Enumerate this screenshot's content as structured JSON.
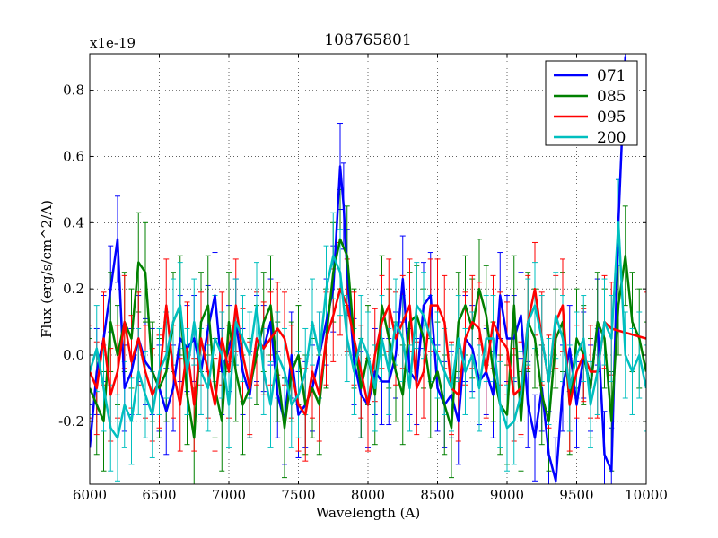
{
  "chart_data": {
    "type": "line",
    "title": "108765801",
    "xlabel": "Wavelength (A)",
    "ylabel": "Flux (erg/s/cm^2/A)",
    "y_multiplier_label": "x1e-19",
    "xlim": [
      6000,
      10000
    ],
    "ylim": [
      -0.39,
      0.91
    ],
    "x_ticks": [
      6000,
      6500,
      7000,
      7500,
      8000,
      8500,
      9000,
      9500,
      10000
    ],
    "x_tick_labels": [
      "6000",
      "6500",
      "7000",
      "7500",
      "8000",
      "8500",
      "9000",
      "9500",
      "10000"
    ],
    "y_ticks": [
      -0.2,
      0.0,
      0.2,
      0.4,
      0.6,
      0.8
    ],
    "y_tick_labels": [
      "-0.2",
      "0.0",
      "0.2",
      "0.4",
      "0.6",
      "0.8"
    ],
    "grid": true,
    "legend_position": "top-right",
    "error_bars": true,
    "series": [
      {
        "name": "071",
        "color": "#0000ff",
        "err": 0.13,
        "x": [
          6000,
          6050,
          6100,
          6150,
          6200,
          6250,
          6300,
          6350,
          6400,
          6450,
          6500,
          6550,
          6600,
          6650,
          6700,
          6750,
          6800,
          6850,
          6900,
          6950,
          7000,
          7050,
          7100,
          7150,
          7200,
          7250,
          7300,
          7350,
          7400,
          7450,
          7500,
          7550,
          7600,
          7650,
          7700,
          7750,
          7800,
          7825,
          7850,
          7900,
          7950,
          8000,
          8050,
          8100,
          8150,
          8200,
          8250,
          8300,
          8350,
          8400,
          8450,
          8500,
          8550,
          8600,
          8650,
          8700,
          8750,
          8800,
          8850,
          8900,
          8950,
          9000,
          9050,
          9100,
          9150,
          9200,
          9250,
          9300,
          9350,
          9400,
          9450,
          9500,
          9550,
          9600,
          9650,
          9700,
          9750,
          9800,
          9850
        ],
        "y": [
          -0.28,
          -0.05,
          0.05,
          0.2,
          0.35,
          -0.1,
          -0.05,
          0.05,
          -0.02,
          -0.05,
          -0.1,
          -0.17,
          -0.1,
          0.05,
          0.02,
          0.05,
          -0.05,
          0.08,
          0.18,
          -0.05,
          0.02,
          0.1,
          -0.05,
          -0.12,
          0.05,
          0.02,
          0.1,
          -0.12,
          -0.2,
          0.0,
          -0.18,
          -0.15,
          -0.1,
          0.0,
          0.1,
          0.2,
          0.57,
          0.45,
          0.25,
          -0.02,
          -0.12,
          -0.15,
          -0.05,
          -0.08,
          -0.08,
          0.0,
          0.23,
          -0.05,
          -0.08,
          0.15,
          0.18,
          -0.1,
          -0.15,
          -0.12,
          -0.2,
          0.05,
          0.02,
          -0.08,
          -0.05,
          -0.12,
          0.18,
          0.05,
          0.05,
          0.12,
          -0.15,
          -0.25,
          -0.1,
          -0.3,
          -0.38,
          -0.1,
          0.02,
          -0.15,
          0.0,
          -0.1,
          0.1,
          -0.3,
          -0.35,
          0.4,
          0.9
        ]
      },
      {
        "name": "085",
        "color": "#008000",
        "err": 0.15,
        "x": [
          6000,
          6050,
          6100,
          6150,
          6200,
          6250,
          6300,
          6350,
          6400,
          6450,
          6500,
          6550,
          6600,
          6650,
          6700,
          6750,
          6800,
          6850,
          6900,
          6950,
          7000,
          7050,
          7100,
          7150,
          7200,
          7250,
          7300,
          7350,
          7400,
          7450,
          7500,
          7550,
          7600,
          7650,
          7700,
          7750,
          7800,
          7850,
          7900,
          7950,
          8000,
          8050,
          8100,
          8150,
          8200,
          8250,
          8300,
          8350,
          8400,
          8450,
          8500,
          8550,
          8600,
          8650,
          8700,
          8750,
          8800,
          8850,
          8900,
          8950,
          9000,
          9050,
          9100,
          9150,
          9200,
          9250,
          9300,
          9350,
          9400,
          9450,
          9500,
          9550,
          9600,
          9650,
          9700,
          9750,
          9800,
          9850,
          9900,
          9950,
          10000
        ],
        "y": [
          -0.1,
          -0.15,
          -0.2,
          0.1,
          0.0,
          0.1,
          0.05,
          0.28,
          0.25,
          -0.05,
          -0.1,
          -0.05,
          0.1,
          0.15,
          -0.12,
          -0.25,
          0.1,
          0.15,
          -0.1,
          -0.2,
          0.1,
          -0.05,
          -0.15,
          -0.1,
          0.0,
          0.1,
          0.15,
          -0.05,
          -0.22,
          -0.05,
          0.0,
          -0.15,
          -0.1,
          -0.15,
          0.05,
          0.25,
          0.35,
          0.3,
          0.05,
          -0.1,
          0.0,
          -0.12,
          0.15,
          0.05,
          -0.05,
          -0.12,
          0.1,
          0.12,
          0.05,
          -0.1,
          -0.05,
          -0.15,
          -0.22,
          0.1,
          0.15,
          0.08,
          0.2,
          0.12,
          -0.05,
          -0.15,
          -0.18,
          0.15,
          -0.2,
          0.1,
          0.05,
          -0.12,
          -0.2,
          0.05,
          0.1,
          -0.15,
          0.05,
          0.0,
          -0.1,
          0.1,
          0.05,
          -0.2,
          0.15,
          0.3,
          0.1,
          0.05,
          -0.05
        ]
      },
      {
        "name": "095",
        "color": "#ff0000",
        "err": 0.14,
        "x": [
          6000,
          6050,
          6100,
          6150,
          6200,
          6250,
          6300,
          6350,
          6400,
          6450,
          6500,
          6550,
          6600,
          6650,
          6700,
          6750,
          6800,
          6850,
          6900,
          6950,
          7000,
          7050,
          7100,
          7150,
          7200,
          7250,
          7300,
          7350,
          7400,
          7450,
          7500,
          7550,
          7600,
          7650,
          7700,
          7750,
          7800,
          7850,
          7900,
          7950,
          8000,
          8050,
          8100,
          8150,
          8200,
          8250,
          8300,
          8350,
          8400,
          8450,
          8500,
          8550,
          8600,
          8650,
          8700,
          8750,
          8800,
          8850,
          8900,
          8950,
          9000,
          9050,
          9100,
          9150,
          9200,
          9250,
          9300,
          9350,
          9400,
          9450,
          9500,
          9550,
          9600,
          9650,
          9700,
          9750,
          10000
        ],
        "y": [
          -0.05,
          -0.1,
          0.05,
          -0.12,
          -0.05,
          0.1,
          -0.02,
          0.05,
          -0.05,
          -0.12,
          -0.08,
          0.15,
          -0.05,
          -0.15,
          0.02,
          -0.15,
          0.05,
          -0.05,
          -0.15,
          0.05,
          -0.05,
          0.15,
          0.0,
          -0.1,
          0.05,
          0.02,
          0.05,
          0.08,
          0.05,
          -0.05,
          -0.15,
          -0.18,
          -0.05,
          -0.12,
          0.05,
          0.12,
          0.2,
          0.15,
          0.05,
          -0.05,
          -0.15,
          0.0,
          0.1,
          0.15,
          0.05,
          0.1,
          0.15,
          -0.1,
          -0.05,
          0.15,
          0.15,
          0.1,
          -0.1,
          -0.12,
          0.05,
          0.1,
          0.08,
          -0.05,
          0.1,
          0.05,
          0.02,
          -0.12,
          -0.1,
          0.1,
          0.2,
          0.05,
          -0.08,
          0.1,
          0.15,
          -0.15,
          -0.05,
          0.0,
          -0.05,
          -0.05,
          0.1,
          0.08,
          0.05
        ]
      },
      {
        "name": "200",
        "color": "#00bfbf",
        "err": 0.13,
        "x": [
          6000,
          6050,
          6100,
          6150,
          6200,
          6250,
          6300,
          6350,
          6400,
          6450,
          6500,
          6550,
          6600,
          6650,
          6700,
          6750,
          6800,
          6850,
          6900,
          6950,
          7000,
          7050,
          7100,
          7150,
          7200,
          7250,
          7300,
          7350,
          7400,
          7450,
          7500,
          7550,
          7600,
          7650,
          7700,
          7750,
          7800,
          7850,
          7900,
          7950,
          8000,
          8050,
          8100,
          8150,
          8200,
          8250,
          8300,
          8350,
          8400,
          8450,
          8500,
          8550,
          8600,
          8650,
          8700,
          8750,
          8800,
          8850,
          8900,
          8950,
          9000,
          9050,
          9100,
          9150,
          9200,
          9250,
          9300,
          9350,
          9400,
          9450,
          9500,
          9550,
          9600,
          9650,
          9700,
          9750,
          9800,
          9850,
          9900,
          9950,
          10000
        ],
        "y": [
          -0.05,
          0.02,
          -0.1,
          -0.22,
          -0.25,
          -0.15,
          -0.2,
          -0.05,
          -0.12,
          -0.18,
          -0.05,
          0.0,
          0.1,
          0.15,
          -0.05,
          0.1,
          -0.05,
          -0.1,
          0.05,
          0.0,
          -0.15,
          0.1,
          0.05,
          0.0,
          0.15,
          -0.05,
          -0.15,
          0.0,
          -0.05,
          -0.15,
          -0.12,
          -0.05,
          0.1,
          0.0,
          0.2,
          0.3,
          0.25,
          0.05,
          -0.05,
          0.05,
          0.0,
          -0.1,
          0.05,
          -0.05,
          0.1,
          0.05,
          -0.1,
          0.15,
          0.12,
          0.05,
          0.0,
          -0.05,
          -0.1,
          0.05,
          -0.05,
          0.0,
          -0.1,
          0.05,
          0.05,
          -0.15,
          -0.22,
          -0.2,
          -0.12,
          0.1,
          0.15,
          0.05,
          -0.08,
          0.12,
          0.05,
          -0.1,
          0.0,
          0.05,
          -0.15,
          -0.05,
          0.1,
          0.05,
          0.4,
          0.0,
          -0.05,
          0.0,
          -0.1
        ]
      }
    ]
  }
}
